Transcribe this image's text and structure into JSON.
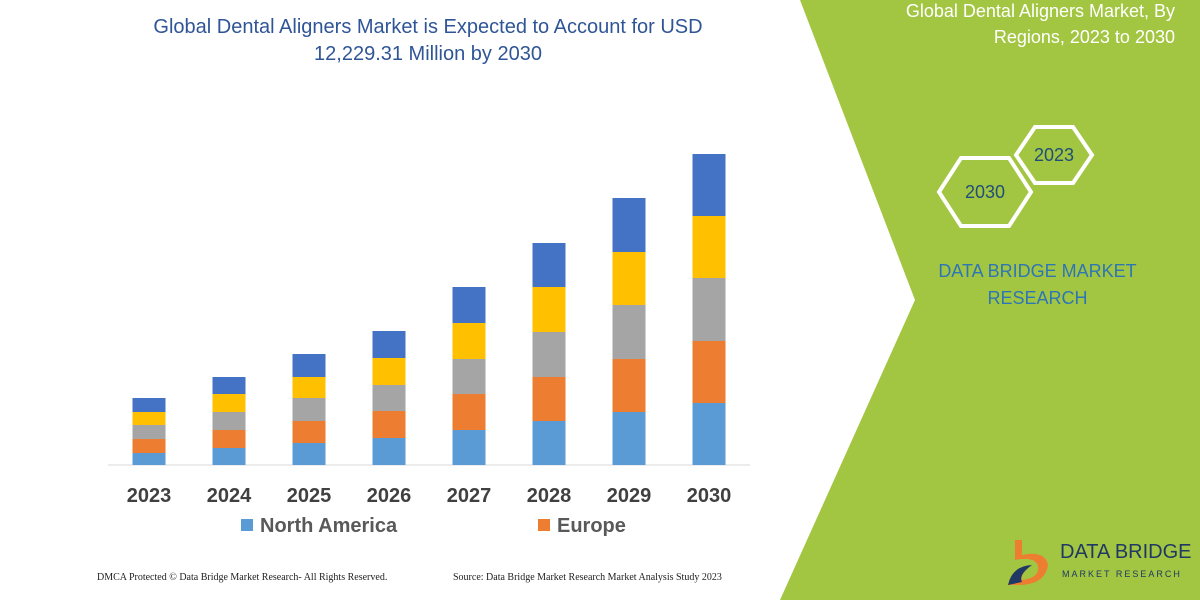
{
  "chart_data": {
    "type": "stacked_bar",
    "title": "Global Dental Aligners Market is Expected to Account for USD 12,229.31 Million by 2030",
    "categories": [
      "2023",
      "2024",
      "2025",
      "2026",
      "2027",
      "2028",
      "2029",
      "2030"
    ],
    "series": [
      {
        "name": "North America",
        "color": "#5b9bd5",
        "values": [
          12,
          17,
          22,
          27,
          35,
          44,
          53,
          62
        ]
      },
      {
        "name": "Europe",
        "color": "#ed7d31",
        "values": [
          14,
          18,
          22,
          27,
          36,
          44,
          53,
          62
        ]
      },
      {
        "color": "#a5a5a5",
        "values": [
          14,
          18,
          23,
          26,
          35,
          45,
          54,
          63
        ]
      },
      {
        "color": "#ffc000",
        "values": [
          13,
          18,
          21,
          27,
          36,
          45,
          53,
          62
        ]
      },
      {
        "color": "#4472c4",
        "values": [
          14,
          17,
          23,
          27,
          36,
          44,
          54,
          62
        ]
      }
    ]
  },
  "panel": {
    "title": "Global Dental Aligners Market, By Regions, 2023 to 2030",
    "hexagons": [
      "2023",
      "2030"
    ],
    "brand": "DATA BRIDGE MARKET RESEARCH"
  },
  "footer": {
    "copyright": "DMCA Protected © Data Bridge Market Research- All Rights Reserved.",
    "source": "Source: Data Bridge Market Research Market Analysis Study 2023"
  },
  "logo": {
    "name": "DATA BRIDGE",
    "tagline": "MARKET RESEARCH"
  }
}
